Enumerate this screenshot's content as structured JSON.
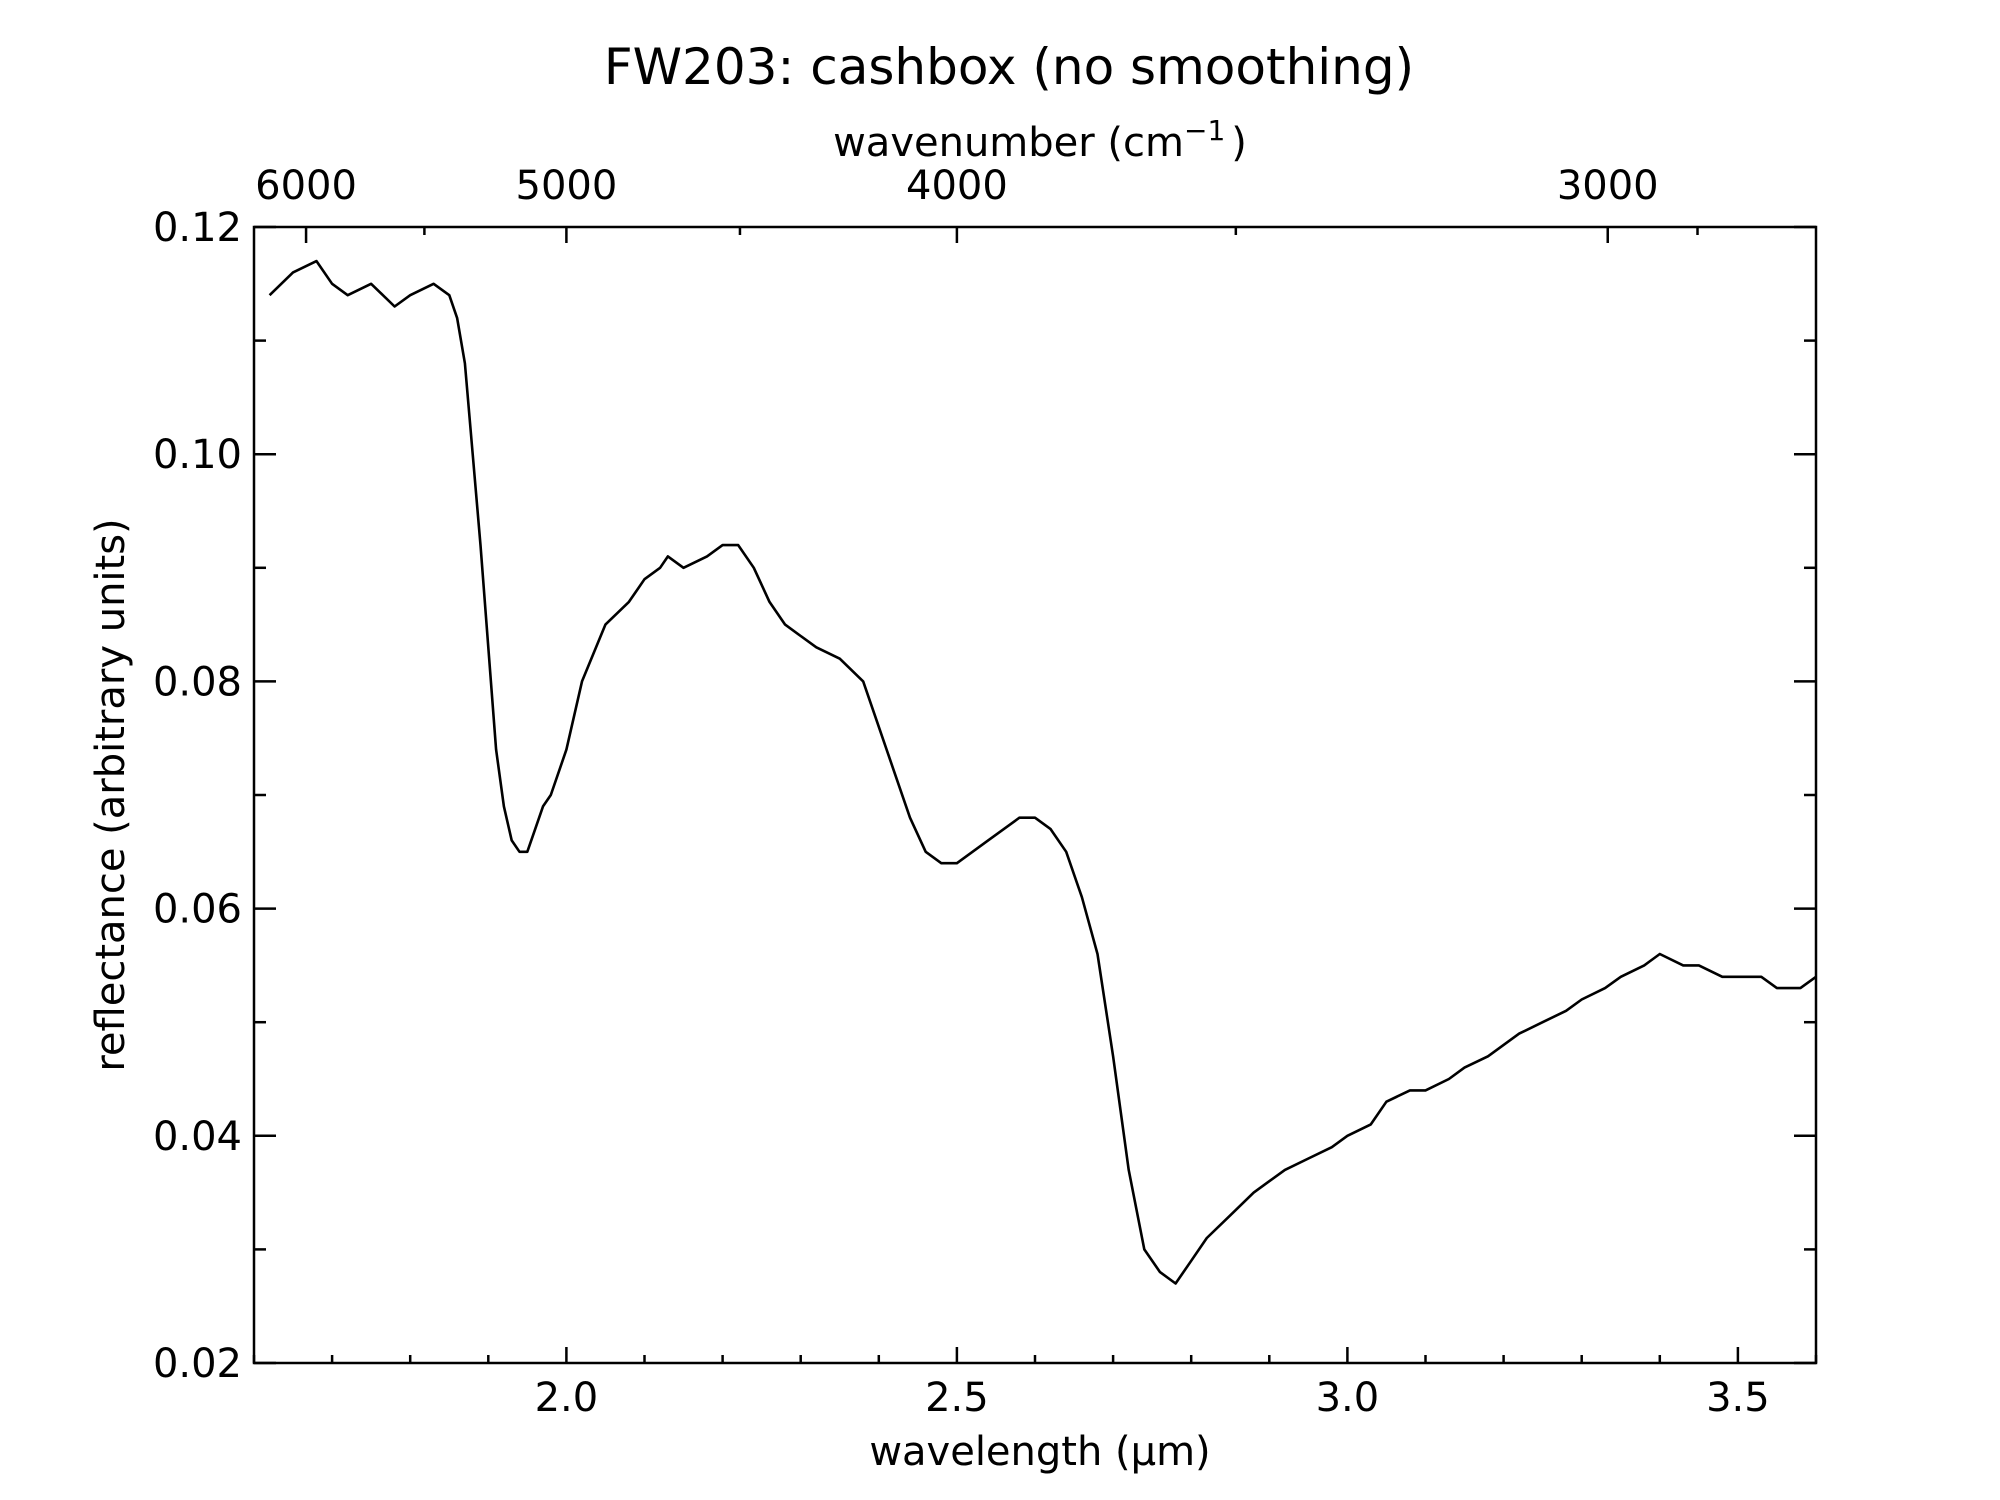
{
  "chart_data": {
    "type": "line",
    "title": "FW203: cashbox (no smoothing)",
    "xlabel": "wavelength (μm)",
    "ylabel": "reflectance (arbitrary units)",
    "x2label_base": "wavenumber (cm",
    "x2label_exp": "−1",
    "x2label_close": ")",
    "xlim": [
      1.6,
      3.6
    ],
    "ylim": [
      0.02,
      0.12
    ],
    "x_major_ticks": [
      2.0,
      2.5,
      3.0,
      3.5
    ],
    "x_tick_labels": [
      "2.0",
      "2.5",
      "3.0",
      "3.5"
    ],
    "x_minor_step": 0.1,
    "y_major_ticks": [
      0.02,
      0.04,
      0.06,
      0.08,
      0.1,
      0.12
    ],
    "y_tick_labels": [
      "0.02",
      "0.04",
      "0.06",
      "0.08",
      "0.10",
      "0.12"
    ],
    "y_minor_step": 0.01,
    "x2_ticks": [
      6000,
      5000,
      4000,
      3000
    ],
    "x2_tick_labels": [
      "6000",
      "5000",
      "4000",
      "3000"
    ],
    "x2_minor_ticks": [
      5500,
      4500,
      3500,
      2900
    ],
    "grid": false,
    "series": [
      {
        "color": "#000000",
        "x": [
          1.62,
          1.65,
          1.68,
          1.7,
          1.72,
          1.75,
          1.78,
          1.8,
          1.83,
          1.85,
          1.86,
          1.87,
          1.88,
          1.89,
          1.9,
          1.91,
          1.92,
          1.93,
          1.94,
          1.95,
          1.96,
          1.97,
          1.98,
          2.0,
          2.02,
          2.05,
          2.08,
          2.1,
          2.12,
          2.13,
          2.15,
          2.18,
          2.2,
          2.22,
          2.24,
          2.26,
          2.28,
          2.3,
          2.32,
          2.35,
          2.38,
          2.4,
          2.42,
          2.44,
          2.46,
          2.48,
          2.5,
          2.52,
          2.54,
          2.56,
          2.58,
          2.6,
          2.62,
          2.64,
          2.66,
          2.68,
          2.7,
          2.72,
          2.74,
          2.76,
          2.78,
          2.8,
          2.82,
          2.85,
          2.88,
          2.9,
          2.92,
          2.95,
          2.98,
          3.0,
          3.03,
          3.05,
          3.08,
          3.1,
          3.13,
          3.15,
          3.18,
          3.2,
          3.22,
          3.25,
          3.28,
          3.3,
          3.33,
          3.35,
          3.38,
          3.4,
          3.43,
          3.45,
          3.48,
          3.5,
          3.53,
          3.55,
          3.58,
          3.6
        ],
        "y": [
          0.114,
          0.116,
          0.117,
          0.115,
          0.114,
          0.115,
          0.113,
          0.114,
          0.115,
          0.114,
          0.112,
          0.108,
          0.1,
          0.092,
          0.083,
          0.074,
          0.069,
          0.066,
          0.065,
          0.065,
          0.067,
          0.069,
          0.07,
          0.074,
          0.08,
          0.085,
          0.087,
          0.089,
          0.09,
          0.091,
          0.09,
          0.091,
          0.092,
          0.092,
          0.09,
          0.087,
          0.085,
          0.084,
          0.083,
          0.082,
          0.08,
          0.076,
          0.072,
          0.068,
          0.065,
          0.064,
          0.064,
          0.065,
          0.066,
          0.067,
          0.068,
          0.068,
          0.067,
          0.065,
          0.061,
          0.056,
          0.047,
          0.037,
          0.03,
          0.028,
          0.027,
          0.029,
          0.031,
          0.033,
          0.035,
          0.036,
          0.037,
          0.038,
          0.039,
          0.04,
          0.041,
          0.043,
          0.044,
          0.044,
          0.045,
          0.046,
          0.047,
          0.048,
          0.049,
          0.05,
          0.051,
          0.052,
          0.053,
          0.054,
          0.055,
          0.056,
          0.055,
          0.055,
          0.054,
          0.054,
          0.054,
          0.053,
          0.053,
          0.054
        ]
      }
    ]
  }
}
